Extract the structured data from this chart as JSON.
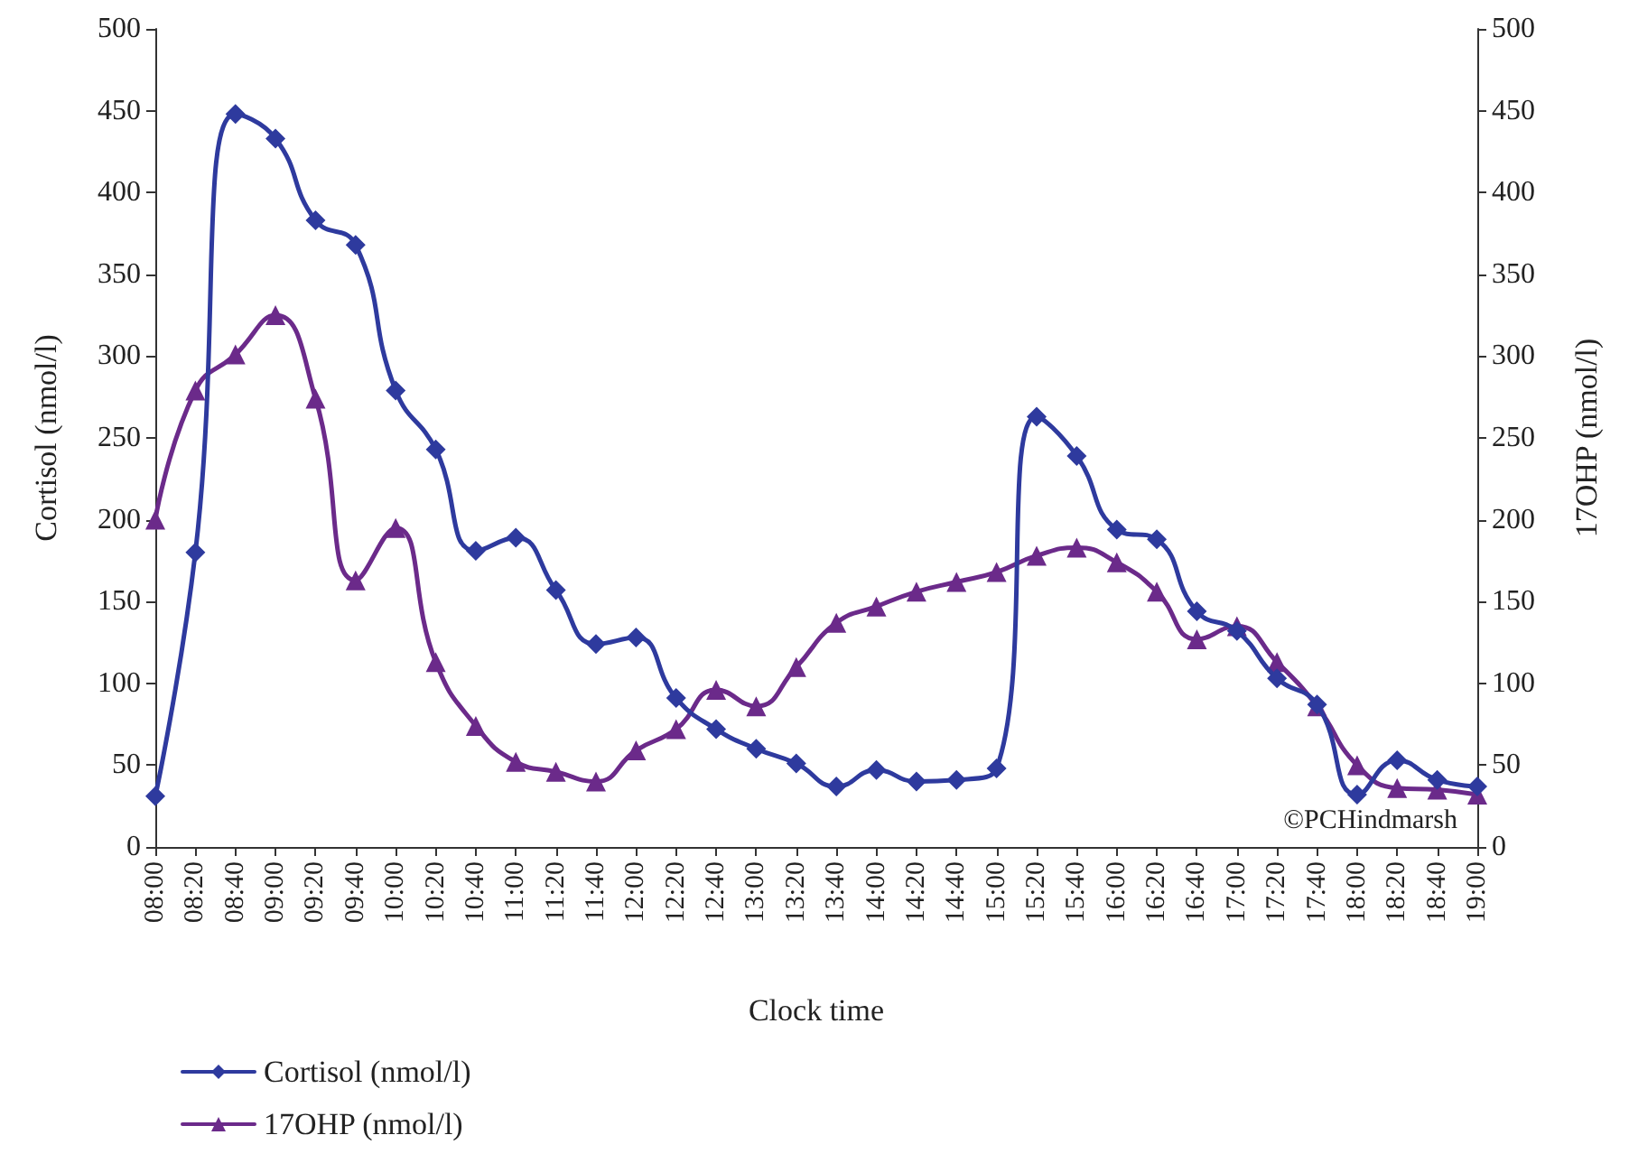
{
  "chart_data": {
    "type": "line",
    "xlabel": "Clock time",
    "ylabel": "Cortisol (nmol/l)",
    "y2label": "17OHP (nmol/l)",
    "categories": [
      "08:00",
      "08:20",
      "08:40",
      "09:00",
      "09:20",
      "09:40",
      "10:00",
      "10:20",
      "10:40",
      "11:00",
      "11:20",
      "11:40",
      "12:00",
      "12:20",
      "12:40",
      "13:00",
      "13:20",
      "13:40",
      "14:00",
      "14:20",
      "14:40",
      "15:00",
      "15:20",
      "15:40",
      "16:00",
      "16:20",
      "16:40",
      "17:00",
      "17:20",
      "17:40",
      "18:00",
      "18:20",
      "18:40",
      "19:00"
    ],
    "series": [
      {
        "name": "Cortisol (nmol/l)",
        "color": "#2e3a9e",
        "marker": "diamond",
        "values": [
          31,
          180,
          448,
          433,
          383,
          368,
          279,
          243,
          181,
          189,
          157,
          124,
          128,
          91,
          72,
          60,
          51,
          37,
          47,
          40,
          41,
          48,
          263,
          239,
          194,
          188,
          144,
          132,
          103,
          87,
          32,
          53,
          41,
          37
        ]
      },
      {
        "name": "17OHP (nmol/l)",
        "color": "#6b2a8a",
        "marker": "triangle",
        "axis": "y2",
        "values": [
          200,
          279,
          301,
          325,
          274,
          163,
          195,
          113,
          74,
          52,
          46,
          40,
          59,
          72,
          96,
          86,
          110,
          137,
          147,
          156,
          162,
          168,
          178,
          183,
          174,
          156,
          127,
          135,
          113,
          86,
          50,
          36,
          35,
          32
        ]
      }
    ],
    "ylim": [
      0,
      500
    ],
    "yticks": [
      0,
      50,
      100,
      150,
      200,
      250,
      300,
      350,
      400,
      450,
      500
    ],
    "y2lim": [
      0,
      500
    ],
    "y2ticks": [
      0,
      50,
      100,
      150,
      200,
      250,
      300,
      350,
      400,
      450,
      500
    ],
    "annotations": [
      "©PCHindmarsh"
    ],
    "legend": "bottom left",
    "grid": false,
    "line_style": "solid"
  }
}
